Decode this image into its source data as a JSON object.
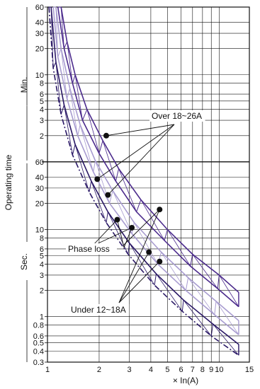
{
  "chart_data": {
    "type": "line",
    "title": "",
    "xlabel": "× In(A)",
    "ylabel": "Operating time",
    "ylabel_sections": {
      "min": "Min.",
      "sec": "Sec."
    },
    "x_scale": "log",
    "xlim": [
      1,
      15
    ],
    "x_ticks": [
      1,
      2,
      3,
      4,
      5,
      6,
      7,
      8,
      9,
      10,
      15
    ],
    "x_tick_labels": [
      "1",
      "2",
      "3",
      "4",
      "5",
      "6",
      "7",
      "8",
      "9",
      "10",
      "15"
    ],
    "y_scale": "log",
    "y_sections": [
      {
        "unit": "min",
        "ticks": [
          2,
          3,
          4,
          5,
          6,
          8,
          10,
          20,
          30,
          40,
          60
        ]
      },
      {
        "unit": "sec",
        "ticks": [
          0.3,
          0.4,
          0.5,
          0.6,
          0.8,
          1,
          2,
          3,
          4,
          5,
          6,
          8,
          10,
          20,
          30,
          40,
          60
        ]
      }
    ],
    "grid": true,
    "colors": {
      "over_band": "#4b2a8c",
      "phase_loss_band": "#a89cd0",
      "under_band": "#2a1866",
      "grid": "#111111"
    },
    "series": [
      {
        "name": "Over 18~26A",
        "upper": [
          [
            1.2,
            3600
          ],
          [
            1.3,
            1440
          ],
          [
            1.45,
            600
          ],
          [
            1.7,
            240
          ],
          [
            2.1,
            105
          ],
          [
            2.6,
            50
          ],
          [
            3.5,
            22
          ],
          [
            5,
            10
          ],
          [
            7,
            5.2
          ],
          [
            10,
            3
          ],
          [
            13,
            1.9
          ]
        ],
        "lower": [
          [
            1.15,
            3600
          ],
          [
            1.25,
            1200
          ],
          [
            1.4,
            480
          ],
          [
            1.6,
            180
          ],
          [
            2,
            75
          ],
          [
            2.5,
            36
          ],
          [
            3.3,
            16
          ],
          [
            4.8,
            7.5
          ],
          [
            6.8,
            3.8
          ],
          [
            9.8,
            2.1
          ],
          [
            13,
            1.3
          ]
        ]
      },
      {
        "name": "Phase loss",
        "upper": [
          [
            1.12,
            3600
          ],
          [
            1.2,
            1200
          ],
          [
            1.35,
            420
          ],
          [
            1.55,
            160
          ],
          [
            1.9,
            62
          ],
          [
            2.4,
            28
          ],
          [
            3.2,
            12
          ],
          [
            4.6,
            5.5
          ],
          [
            6.6,
            2.8
          ],
          [
            9.6,
            1.5
          ],
          [
            13,
            0.9
          ]
        ],
        "lower": [
          [
            1.08,
            3600
          ],
          [
            1.15,
            960
          ],
          [
            1.3,
            320
          ],
          [
            1.5,
            120
          ],
          [
            1.85,
            46
          ],
          [
            2.3,
            20
          ],
          [
            3.1,
            9
          ],
          [
            4.4,
            4
          ],
          [
            6.4,
            2
          ],
          [
            9.4,
            1.05
          ],
          [
            13,
            0.62
          ]
        ]
      },
      {
        "name": "Under 12~18A",
        "upper": [
          [
            1.05,
            3600
          ],
          [
            1.12,
            840
          ],
          [
            1.25,
            270
          ],
          [
            1.45,
            95
          ],
          [
            1.8,
            36
          ],
          [
            2.25,
            16
          ],
          [
            3,
            7
          ],
          [
            4.3,
            3.1
          ],
          [
            6.2,
            1.55
          ],
          [
            9.2,
            0.82
          ],
          [
            13,
            0.48
          ]
        ],
        "lower": [
          [
            1.02,
            3600
          ],
          [
            1.08,
            720
          ],
          [
            1.2,
            210
          ],
          [
            1.4,
            72
          ],
          [
            1.75,
            27
          ],
          [
            2.2,
            12
          ],
          [
            2.95,
            5.2
          ],
          [
            4.2,
            2.3
          ],
          [
            6.1,
            1.15
          ],
          [
            9,
            0.6
          ],
          [
            13,
            0.36
          ]
        ]
      }
    ],
    "markers": [
      [
        2.2,
        120
      ],
      [
        1.95,
        38
      ],
      [
        2.25,
        25
      ],
      [
        2.55,
        13
      ],
      [
        3.1,
        10.5
      ],
      [
        4.5,
        17
      ],
      [
        3.9,
        5.5
      ],
      [
        4.5,
        4.3
      ]
    ],
    "annotations": [
      {
        "text": "Over 18~26A",
        "target": "Over 18~26A"
      },
      {
        "text": "Phase loss",
        "target": "Phase loss"
      },
      {
        "text": "Under 12~18A",
        "target": "Under 12~18A"
      }
    ]
  }
}
